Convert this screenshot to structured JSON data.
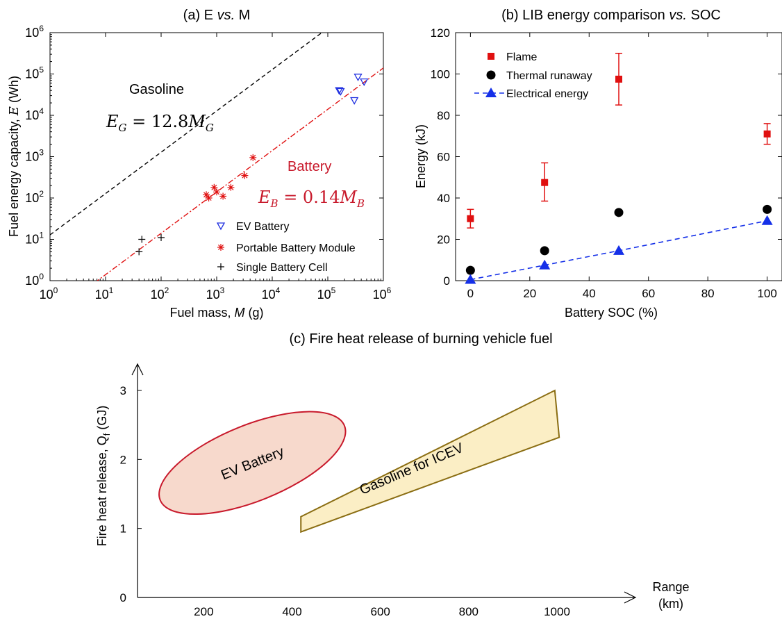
{
  "panels": [
    {
      "id": "a",
      "type": "scatter",
      "title_prefix": "(a) E ",
      "title_vs": "vs.",
      "title_suffix": " M",
      "xlabel_prefix": "Fuel mass, ",
      "xlabel_var": "M",
      "xlabel_suffix": " (g)",
      "ylabel_prefix": "Fuel energy capacity, ",
      "ylabel_var": "E",
      "ylabel_suffix": " (Wh)",
      "x_scale": "log",
      "y_scale": "log",
      "xlim": [
        1,
        1000000
      ],
      "ylim": [
        1,
        1000000
      ],
      "x_ticks": [
        {
          "value": 1,
          "base": "10",
          "exp": "0"
        },
        {
          "value": 10,
          "base": "10",
          "exp": "1"
        },
        {
          "value": 100,
          "base": "10",
          "exp": "2"
        },
        {
          "value": 1000,
          "base": "10",
          "exp": "3"
        },
        {
          "value": 10000,
          "base": "10",
          "exp": "4"
        },
        {
          "value": 100000,
          "base": "10",
          "exp": "5"
        },
        {
          "value": 1000000,
          "base": "10",
          "exp": "6"
        }
      ],
      "y_ticks": [
        {
          "value": 1,
          "base": "10",
          "exp": "0"
        },
        {
          "value": 10,
          "base": "10",
          "exp": "1"
        },
        {
          "value": 100,
          "base": "10",
          "exp": "2"
        },
        {
          "value": 1000,
          "base": "10",
          "exp": "3"
        },
        {
          "value": 10000,
          "base": "10",
          "exp": "4"
        },
        {
          "value": 100000,
          "base": "10",
          "exp": "5"
        },
        {
          "value": 1000000,
          "base": "10",
          "exp": "6"
        }
      ],
      "legend_position": "bottom-right",
      "series": [
        {
          "name": "EV Battery",
          "marker": "triangle-down-open",
          "color": "#2030e0",
          "points": [
            [
              160000,
              40000
            ],
            [
              170000,
              38000
            ],
            [
              300000,
              23000
            ],
            [
              350000,
              85000
            ],
            [
              450000,
              65000
            ]
          ]
        },
        {
          "name": "Portable Battery Module",
          "marker": "asterisk",
          "color": "#e01010",
          "points": [
            [
              650,
              120
            ],
            [
              720,
              100
            ],
            [
              900,
              180
            ],
            [
              1000,
              140
            ],
            [
              1300,
              110
            ],
            [
              1800,
              180
            ],
            [
              3200,
              350
            ],
            [
              4500,
              950
            ]
          ]
        },
        {
          "name": "Single Battery Cell",
          "marker": "plus",
          "color": "#000000",
          "points": [
            [
              40,
              5
            ],
            [
              45,
              10
            ],
            [
              100,
              11
            ]
          ]
        }
      ],
      "fit_lines": [
        {
          "label": "Gasoline",
          "equation_lhs": "E",
          "equation_lhs_sub": "G",
          "equation_rhs": " = 12.8",
          "equation_var": "M",
          "equation_var_sub": "G",
          "coefficient": 12.8,
          "style": "dashed",
          "color": "#000000"
        },
        {
          "label": "Battery",
          "equation_lhs": "E",
          "equation_lhs_sub": "B",
          "equation_rhs": " = 0.14",
          "equation_var": "M",
          "equation_var_sub": "B",
          "coefficient": 0.14,
          "style": "dash-dot",
          "color": "#e01010"
        }
      ]
    },
    {
      "id": "b",
      "type": "scatter",
      "title_prefix": "(b) LIB energy comparison ",
      "title_vs": "vs.",
      "title_suffix": " SOC",
      "xlabel": "Battery SOC (%)",
      "ylabel": "Energy (kJ)",
      "xlim": [
        -5,
        105
      ],
      "ylim": [
        0,
        120
      ],
      "x_ticks": [
        0,
        20,
        40,
        60,
        80,
        100
      ],
      "y_ticks": [
        0,
        20,
        40,
        60,
        80,
        100,
        120
      ],
      "legend_position": "top-left",
      "series": [
        {
          "name": "Flame",
          "marker": "square",
          "color": "#e01010",
          "x": [
            0,
            25,
            50,
            100
          ],
          "y": [
            30,
            47.5,
            97.5,
            71
          ],
          "err_low": [
            25.5,
            38.5,
            85,
            66
          ],
          "err_high": [
            34.5,
            57,
            110,
            76
          ]
        },
        {
          "name": "Thermal runaway",
          "marker": "circle",
          "color": "#000000",
          "x": [
            0,
            25,
            50,
            100
          ],
          "y": [
            5,
            14.5,
            33,
            34.5
          ]
        },
        {
          "name": "Electrical energy",
          "marker": "triangle-up",
          "color": "#1530e8",
          "line": "dashed",
          "x": [
            0,
            25,
            50,
            100
          ],
          "y": [
            0.5,
            7.5,
            14.5,
            29
          ]
        }
      ]
    },
    {
      "id": "c",
      "type": "area",
      "title": "(c) Fire heat release of burning vehicle fuel",
      "xlabel_line1": "Range",
      "xlabel_line2": "(km)",
      "ylabel_prefix": "Fire heat release, Q",
      "ylabel_sub": "f",
      "ylabel_suffix": " (GJ)",
      "xlim": [
        50,
        1150
      ],
      "ylim": [
        0,
        3.3
      ],
      "x_ticks": [
        200,
        400,
        600,
        800,
        1000
      ],
      "y_ticks": [
        0,
        1,
        2,
        3
      ],
      "regions": [
        {
          "name": "EV Battery",
          "shape": "ellipse",
          "fill": "#f7d9cc",
          "stroke": "#c8192b",
          "center": [
            310,
            1.95
          ],
          "semi_axis_range_km": 225,
          "semi_axis_heat_gj": 0.55,
          "rotation_deg": -22
        },
        {
          "name": "Gasoline for ICEV",
          "shape": "polygon",
          "fill": "#fbeec5",
          "stroke": "#8a6d12",
          "polygon": [
            [
              420,
              0.95
            ],
            [
              1005,
              2.32
            ],
            [
              995,
              3.0
            ],
            [
              420,
              1.17
            ]
          ]
        }
      ]
    }
  ]
}
